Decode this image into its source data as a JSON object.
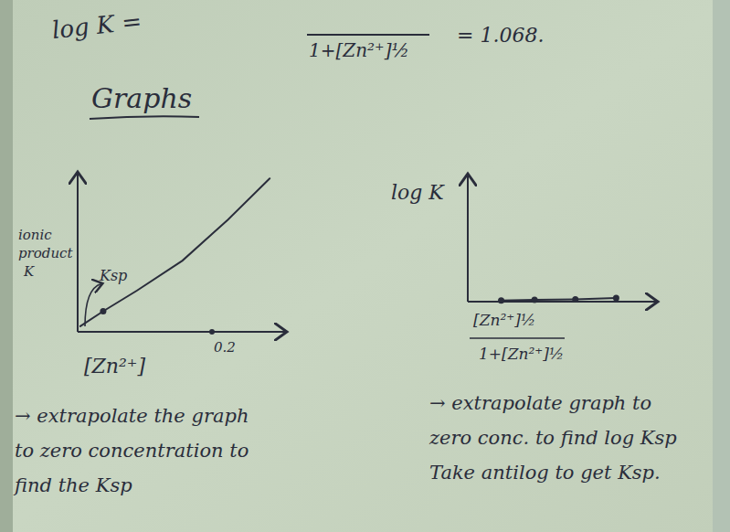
{
  "page": {
    "top_left": "log K =",
    "top_denominator": "1+[Zn²⁺]½",
    "top_result": "= 1.068.",
    "heading": "Graphs"
  },
  "chart_data": [
    {
      "type": "line",
      "ylabel": "ionic product K",
      "xlabel": "[Zn²⁺]",
      "x": [
        0.004,
        0.038,
        0.088,
        0.156,
        0.224,
        0.286
      ],
      "values": [
        0.035,
        0.13,
        0.26,
        0.45,
        0.71,
        0.97
      ],
      "color": "#2a2d3b",
      "xlim": [
        0,
        0.3
      ],
      "ylim": [
        0,
        1
      ],
      "xticks": [
        0.2
      ],
      "yticks": [],
      "tick_labels": "x",
      "annotations": [
        {
          "text": "Ksp",
          "x": 0.038,
          "y": 0.13
        }
      ],
      "caption": [
        "→ extrapolate the graph",
        "to zero concentration to",
        "find the Ksp"
      ]
    },
    {
      "type": "line",
      "ylabel": "log K",
      "xlabel": {
        "numerator": "[Zn²⁺]½",
        "denominator": "1+[Zn²⁺]½"
      },
      "x": [
        0.18,
        0.36,
        0.58,
        0.8
      ],
      "values": [
        0.01,
        0.015,
        0.02,
        0.03
      ],
      "color": "#2a2d3b",
      "marker": "dot",
      "xlim": [
        0,
        1
      ],
      "ylim": [
        0,
        1
      ],
      "xticks": [],
      "yticks": [],
      "tick_labels": false,
      "caption": [
        "→ extrapolate graph to",
        "zero conc. to find log Ksp",
        "Take antilog to get Ksp."
      ]
    }
  ]
}
